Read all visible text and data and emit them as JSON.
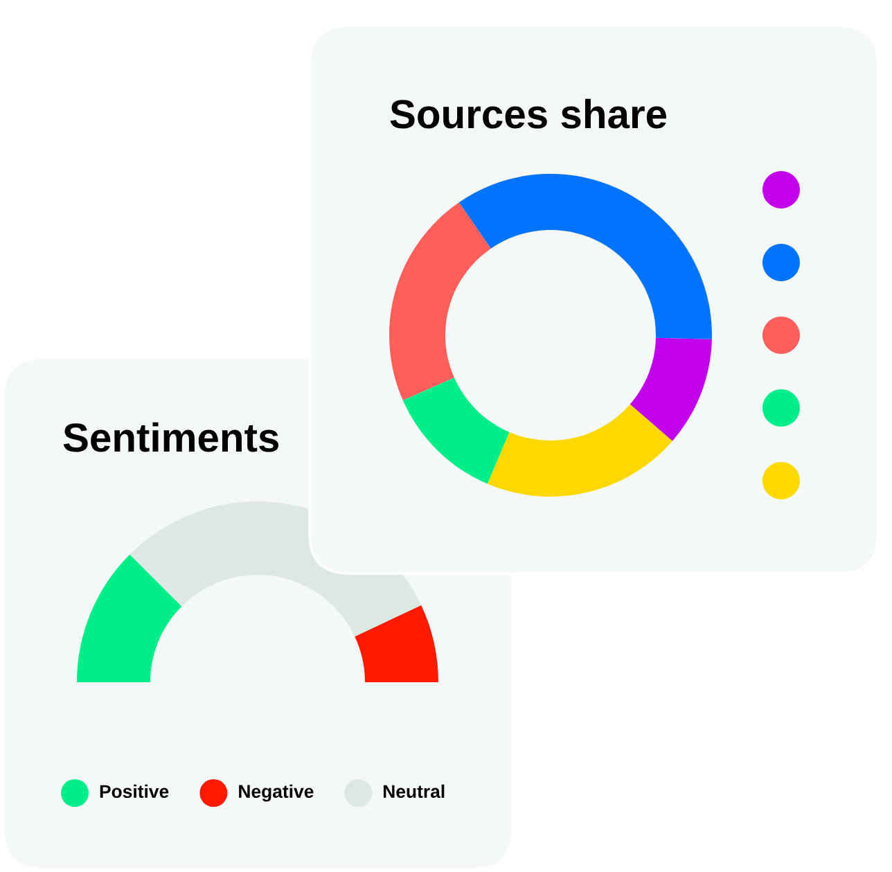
{
  "chart_data": [
    {
      "type": "donut",
      "title": "Sources share",
      "categories": [
        null,
        null,
        null,
        null,
        null
      ],
      "values": [
        11,
        35,
        22,
        12,
        20
      ],
      "colors": [
        "#c300ec",
        "#0073ff",
        "#ff5e5b",
        "#00ee8a",
        "#ffd800"
      ]
    },
    {
      "type": "donut",
      "title": "Sentiments",
      "categories": [
        "Positive",
        "Negative",
        "Neutral"
      ],
      "values": [
        25,
        14,
        61
      ],
      "colors": [
        "#00ee8a",
        "#ff1a00",
        "#dce9e3"
      ],
      "legend": "bottom"
    }
  ]
}
